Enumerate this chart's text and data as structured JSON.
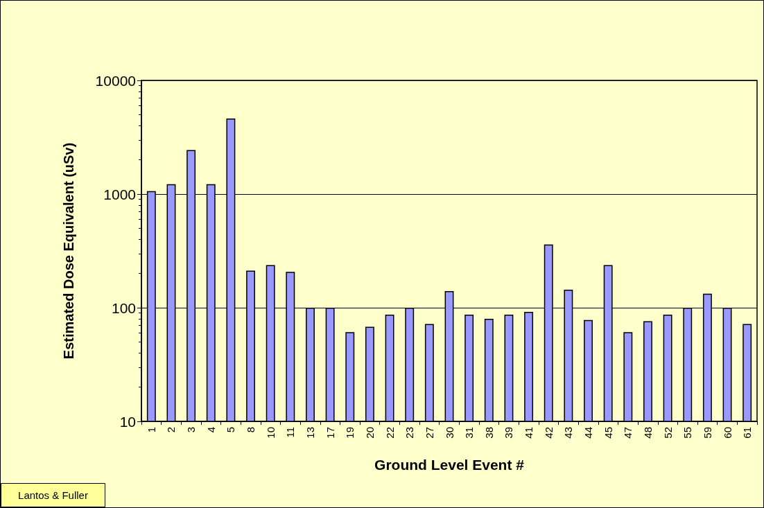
{
  "chart_data": {
    "type": "bar",
    "xlabel": "Ground Level Event #",
    "ylabel": "Estimated Dose Equivalent (uSv)",
    "categories": [
      "1",
      "2",
      "3",
      "4",
      "5",
      "8",
      "10",
      "11",
      "13",
      "17",
      "19",
      "20",
      "22",
      "23",
      "27",
      "30",
      "31",
      "38",
      "39",
      "41",
      "42",
      "43",
      "44",
      "45",
      "47",
      "48",
      "52",
      "55",
      "59",
      "60",
      "61"
    ],
    "values": [
      1060,
      1220,
      2440,
      1220,
      4620,
      212,
      237,
      207,
      100,
      100,
      61,
      68,
      87,
      100,
      72,
      140,
      87,
      80,
      87,
      92,
      360,
      144,
      78,
      237,
      61,
      76,
      87,
      100,
      133,
      100,
      72
    ],
    "color": "#9999ff",
    "ylim": [
      10,
      10000
    ],
    "yticks": [
      10,
      100,
      1000,
      10000
    ],
    "log": "y",
    "grid": "y",
    "annotations": [
      "Lantos & Fuller"
    ]
  }
}
